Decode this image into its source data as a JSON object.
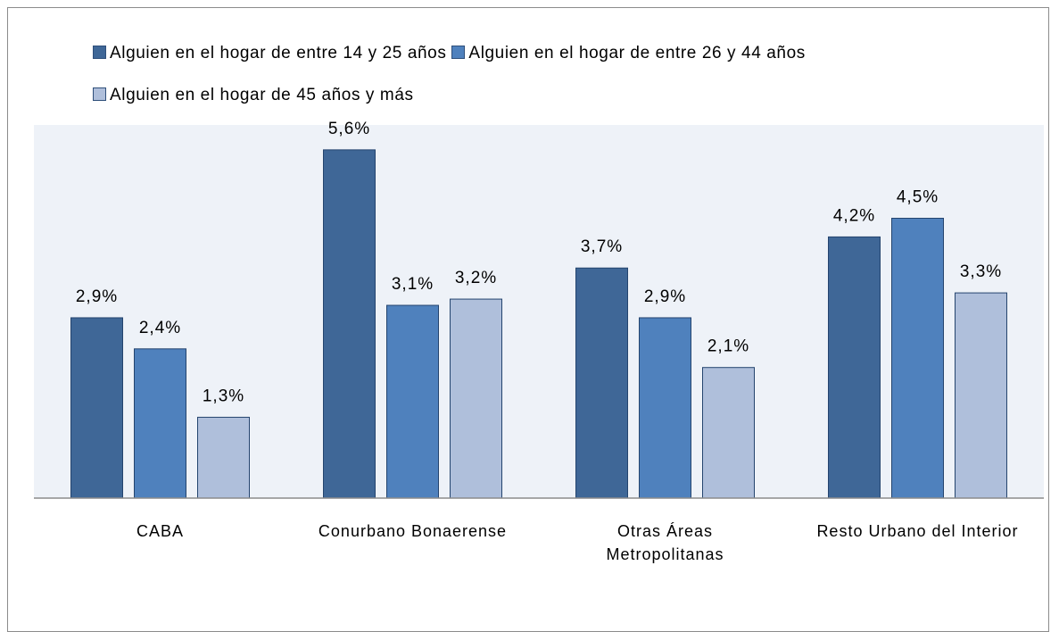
{
  "chart_data": {
    "type": "bar",
    "categories": [
      "CABA",
      "Conurbano Bonaerense",
      "Otras Áreas Metropolitanas",
      "Resto Urbano del Interior"
    ],
    "series": [
      {
        "name": "Alguien en el hogar de entre 14 y 25 años",
        "color": "#3f6797",
        "values": [
          2.9,
          5.6,
          3.7,
          4.2
        ],
        "value_labels": [
          "2,9%",
          "5,6%",
          "3,7%",
          "4,2%"
        ]
      },
      {
        "name": "Alguien en el hogar de entre 26 y 44 años",
        "color": "#4f81bd",
        "values": [
          2.4,
          3.1,
          2.9,
          4.5
        ],
        "value_labels": [
          "2,4%",
          "3,1%",
          "2,9%",
          "4,5%"
        ]
      },
      {
        "name": "Alguien en el hogar de 45 años y más",
        "color": "#afbfdb",
        "values": [
          1.3,
          3.2,
          2.1,
          3.3
        ],
        "value_labels": [
          "1,3%",
          "3,2%",
          "2,1%",
          "3,3%"
        ]
      }
    ],
    "ylim": [
      0,
      6
    ],
    "legend": "top"
  }
}
